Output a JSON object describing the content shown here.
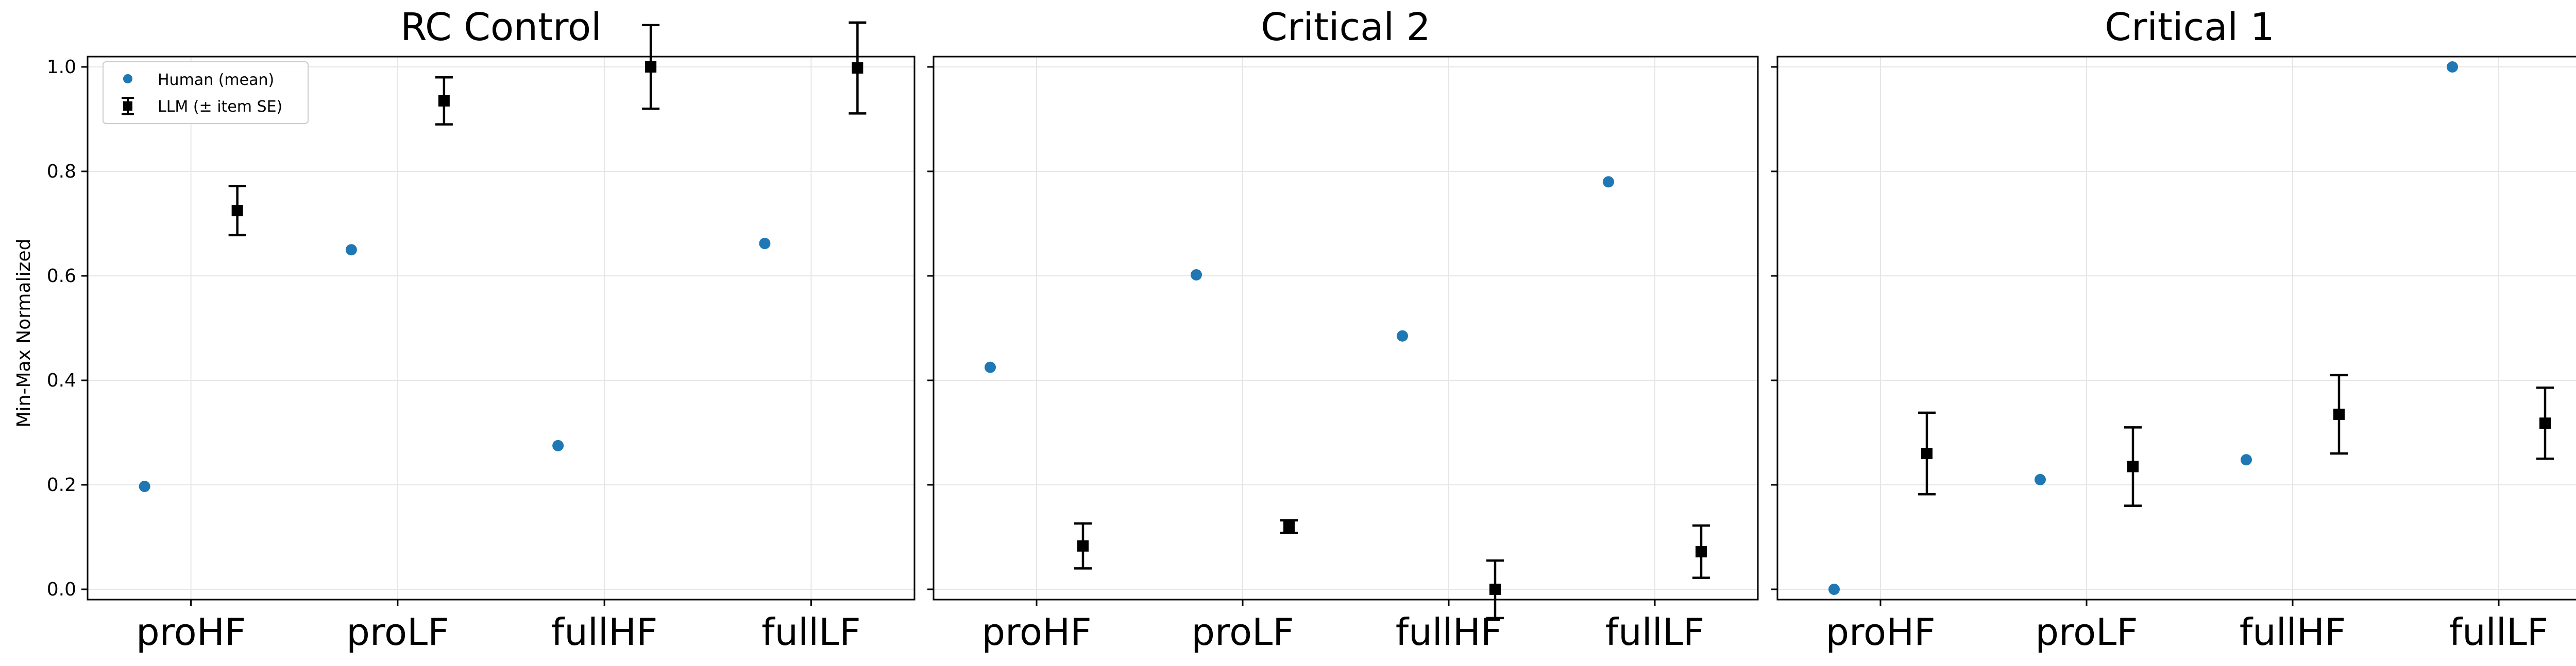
{
  "figure": {
    "ylabel": "Min-Max Normalized",
    "legend": {
      "placement": "upper-left",
      "human_label": "Human (mean)",
      "llm_label": "LLM (± item SE)"
    },
    "colors": {
      "human": "#1f77b4",
      "llm": "#000000",
      "grid": "#e6e6e6"
    }
  },
  "chart_data": [
    {
      "type": "scatter",
      "title": "RC Control",
      "categories": [
        "proHF",
        "proLF",
        "fullHF",
        "fullLF"
      ],
      "ylim": [
        0.0,
        1.0
      ],
      "yticks": [
        "0.0",
        "0.2",
        "0.4",
        "0.6",
        "0.8",
        "1.0"
      ],
      "grid": true,
      "series": [
        {
          "name": "Human (mean)",
          "values": [
            0.197,
            0.65,
            0.275,
            0.662
          ]
        },
        {
          "name": "LLM (± item SE)",
          "values": [
            0.725,
            0.935,
            1.0,
            0.998
          ],
          "error": [
            0.047,
            0.045,
            0.08,
            0.087
          ]
        }
      ]
    },
    {
      "type": "scatter",
      "title": "Critical 2",
      "categories": [
        "proHF",
        "proLF",
        "fullHF",
        "fullLF"
      ],
      "ylim": [
        0.0,
        1.0
      ],
      "yticks": [
        "0.0",
        "0.2",
        "0.4",
        "0.6",
        "0.8",
        "1.0"
      ],
      "grid": true,
      "series": [
        {
          "name": "Human (mean)",
          "values": [
            0.425,
            0.602,
            0.485,
            0.78
          ]
        },
        {
          "name": "LLM (± item SE)",
          "values": [
            0.083,
            0.12,
            0.0,
            0.072
          ],
          "error": [
            0.043,
            0.012,
            0.055,
            0.05
          ]
        }
      ]
    },
    {
      "type": "scatter",
      "title": "Critical 1",
      "categories": [
        "proHF",
        "proLF",
        "fullHF",
        "fullLF"
      ],
      "ylim": [
        0.0,
        1.0
      ],
      "yticks": [
        "0.0",
        "0.2",
        "0.4",
        "0.6",
        "0.8",
        "1.0"
      ],
      "grid": true,
      "series": [
        {
          "name": "Human (mean)",
          "values": [
            0.0,
            0.21,
            0.248,
            1.0
          ]
        },
        {
          "name": "LLM (± item SE)",
          "values": [
            0.26,
            0.235,
            0.335,
            0.318
          ],
          "error": [
            0.078,
            0.075,
            0.075,
            0.068
          ]
        }
      ]
    }
  ]
}
